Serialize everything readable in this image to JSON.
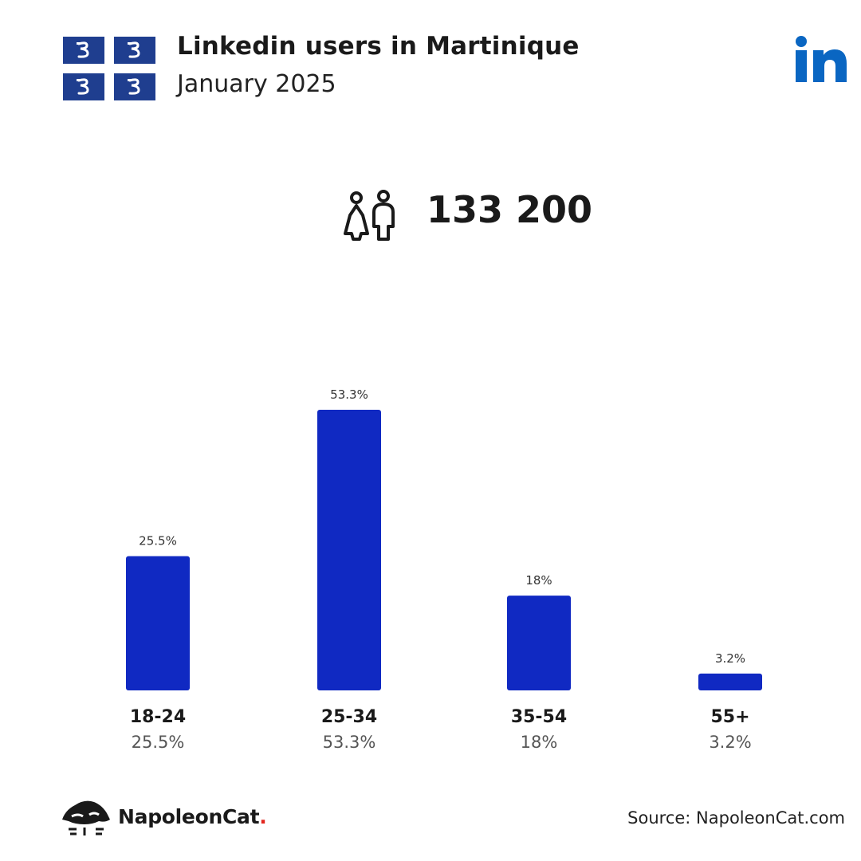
{
  "header": {
    "title": "Linkedin users in Martinique",
    "subtitle": "January 2025"
  },
  "total": {
    "value": "133 200"
  },
  "chart_data": {
    "type": "bar",
    "categories": [
      "18-24",
      "25-34",
      "35-54",
      "55+"
    ],
    "values": [
      25.5,
      53.3,
      18,
      3.2
    ],
    "value_labels": [
      "25.5%",
      "53.3%",
      "18%",
      "3.2%"
    ],
    "ylim": [
      0,
      53.3
    ],
    "grid": false,
    "bar_color": "#1029c2"
  },
  "footer": {
    "brand": "NapoleonCat",
    "brand_dot": ".",
    "source": "Source: NapoleonCat.com"
  },
  "colors": {
    "linkedin_blue": "#0a66c2",
    "flag_blue": "#1f3e8f",
    "brand_dot": "#e2261f"
  },
  "icons": {
    "flag": "martinique-flag-icon",
    "logo": "linkedin-logo-icon",
    "total": "users-icon",
    "brand": "napoleoncat-logo-icon"
  }
}
